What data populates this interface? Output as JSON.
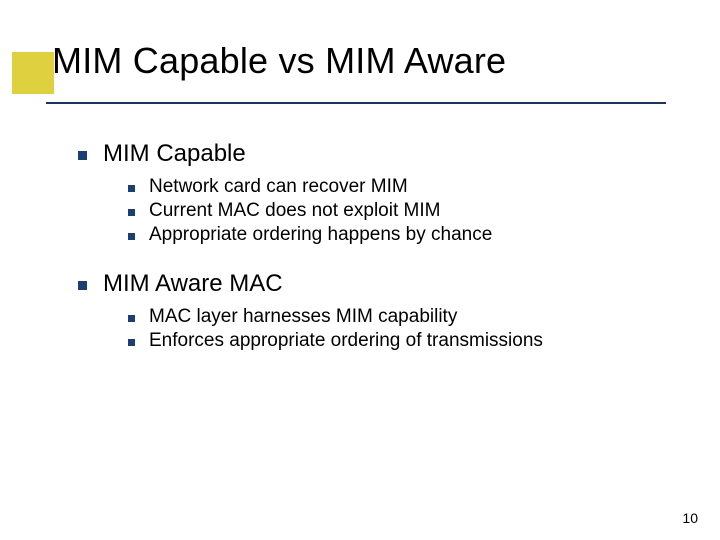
{
  "colors": {
    "accent_block": "#dfd03f",
    "underline": "#1b355f",
    "bullet": "#1c3f73",
    "background": "#ffffff",
    "text": "#000000"
  },
  "typography": {
    "family": "Verdana",
    "title_size_pt": 36,
    "l1_size_pt": 24,
    "l2_size_pt": 19,
    "pagenum_size_pt": 14
  },
  "title": "MIM Capable vs MIM Aware",
  "sections": [
    {
      "heading": "MIM Capable",
      "items": [
        "Network card can recover MIM",
        "Current MAC does not exploit MIM",
        "Appropriate ordering happens by chance"
      ]
    },
    {
      "heading": "MIM Aware MAC",
      "items": [
        "MAC layer harnesses MIM capability",
        "Enforces appropriate ordering of transmissions"
      ]
    }
  ],
  "page_number": "10"
}
